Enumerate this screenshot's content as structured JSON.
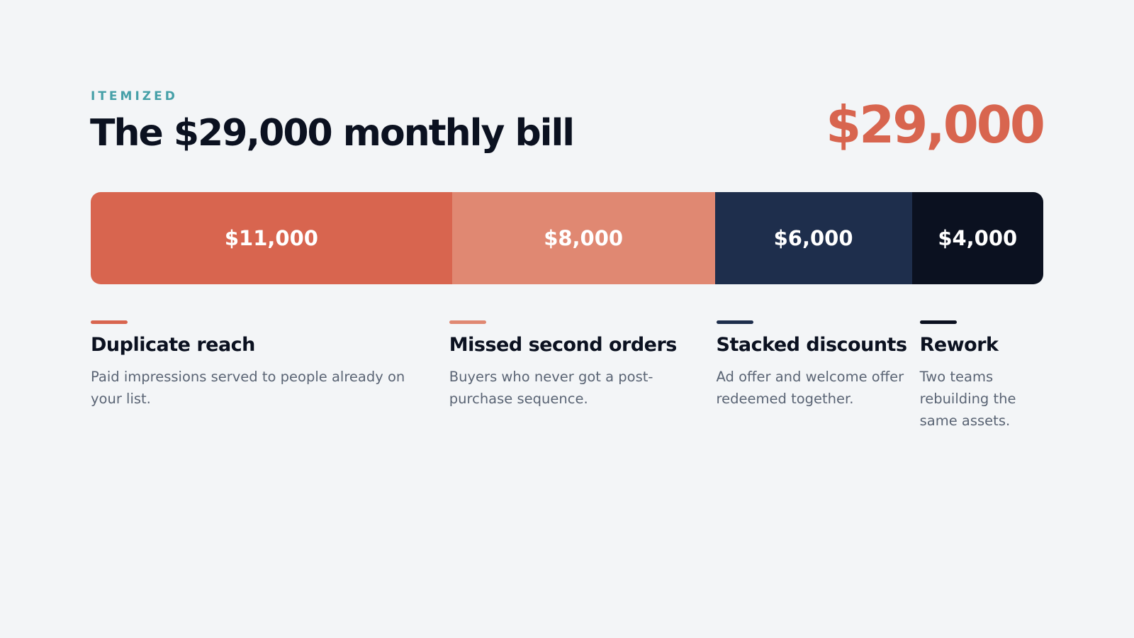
{
  "header": {
    "eyebrow": "ITEMIZED",
    "title": "The $29,000 monthly bill",
    "total": "$29,000"
  },
  "colors": {
    "background": "#f3f5f7",
    "accent_teal": "#46a0a8",
    "dark_text": "#0b1120",
    "body_text": "#5a6474"
  },
  "chart_data": {
    "type": "bar",
    "stacked": true,
    "orientation": "horizontal",
    "total": 29000,
    "categories": [
      "Duplicate reach",
      "Missed second orders",
      "Stacked discounts",
      "Rework"
    ],
    "values": [
      11000,
      8000,
      6000,
      4000
    ],
    "value_labels": [
      "$11,000",
      "$8,000",
      "$6,000",
      "$4,000"
    ],
    "colors": [
      "#d8654f",
      "#e08872",
      "#1e2e4c",
      "#0b1120"
    ]
  },
  "segments": [
    {
      "label": "$11,000",
      "title": "Duplicate reach",
      "description": "Paid impressions served to people already on your list."
    },
    {
      "label": "$8,000",
      "title": "Missed second orders",
      "description": "Buyers who never got a post-purchase sequence."
    },
    {
      "label": "$6,000",
      "title": "Stacked discounts",
      "description": "Ad offer and welcome offer redeemed together."
    },
    {
      "label": "$4,000",
      "title": "Rework",
      "description": "Two teams rebuilding the same assets."
    }
  ]
}
